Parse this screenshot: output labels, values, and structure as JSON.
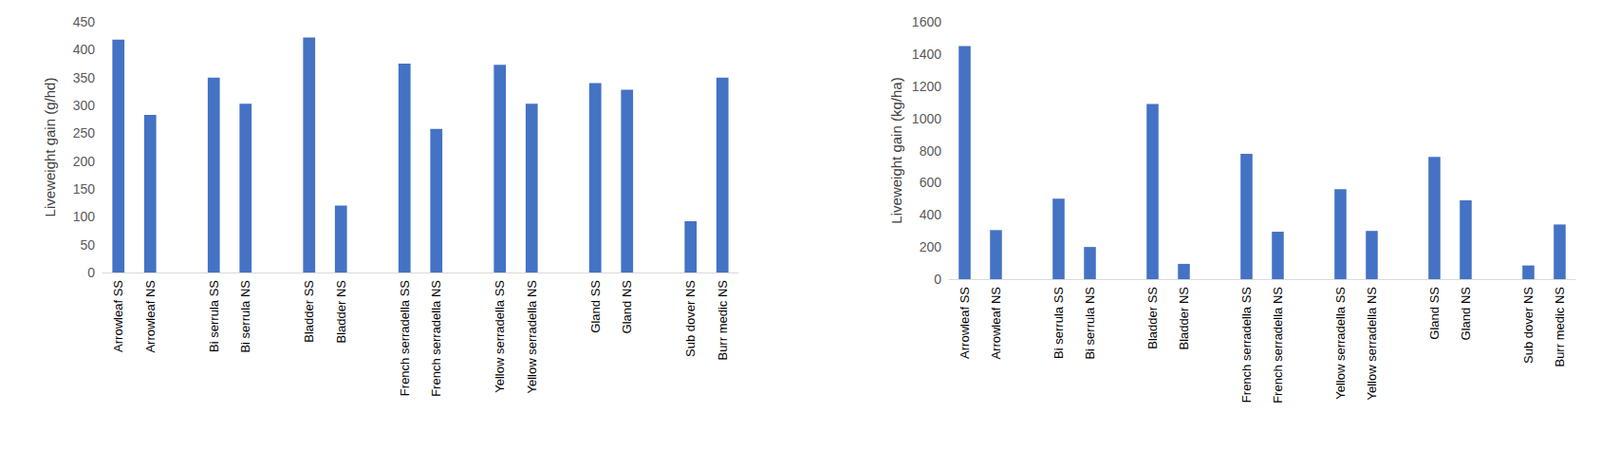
{
  "chart_data": [
    {
      "type": "bar",
      "y_label": "Liveweight gain (g/hd)",
      "categories": [
        "Arrowleaf SS",
        "Arrowleaf NS",
        null,
        "Bi serrula SS",
        "Bi serrula NS",
        null,
        "Bladder SS",
        "Bladder NS",
        null,
        "French serradella SS",
        "French serradella NS",
        null,
        "Yellow serradella SS",
        "Yellow serradella NS",
        null,
        "Gland SS",
        "Gland NS",
        null,
        "Sub dover NS",
        "Burr medic NS"
      ],
      "values": [
        418,
        283,
        null,
        350,
        303,
        null,
        422,
        120,
        null,
        375,
        258,
        null,
        373,
        303,
        null,
        340,
        328,
        null,
        92,
        350
      ],
      "color": "#4472c4",
      "ylim": [
        0,
        450
      ],
      "yticks": [
        0,
        50,
        100,
        150,
        200,
        250,
        300,
        350,
        400,
        450
      ],
      "grid": false
    },
    {
      "type": "bar",
      "y_label": "Liveweight gain (kg/ha)",
      "categories": [
        "Arrowleaf SS",
        "Arrowleaf NS",
        null,
        "Bi serrula SS",
        "Bi serrula NS",
        null,
        "Bladder SS",
        "Bladder NS",
        null,
        "French serradella SS",
        "French serradella NS",
        null,
        "Yellow serradella SS",
        "Yellow serradella NS",
        null,
        "Gland SS",
        "Gland NS",
        null,
        "Sub dover NS",
        "Burr medic NS"
      ],
      "values": [
        1450,
        305,
        null,
        500,
        200,
        null,
        1090,
        95,
        null,
        780,
        295,
        null,
        560,
        300,
        null,
        760,
        490,
        null,
        85,
        340
      ],
      "color": "#4472c4",
      "ylim": [
        0,
        1600
      ],
      "yticks": [
        0,
        200,
        400,
        600,
        800,
        1000,
        1200,
        1400,
        1600
      ],
      "grid": false
    }
  ]
}
